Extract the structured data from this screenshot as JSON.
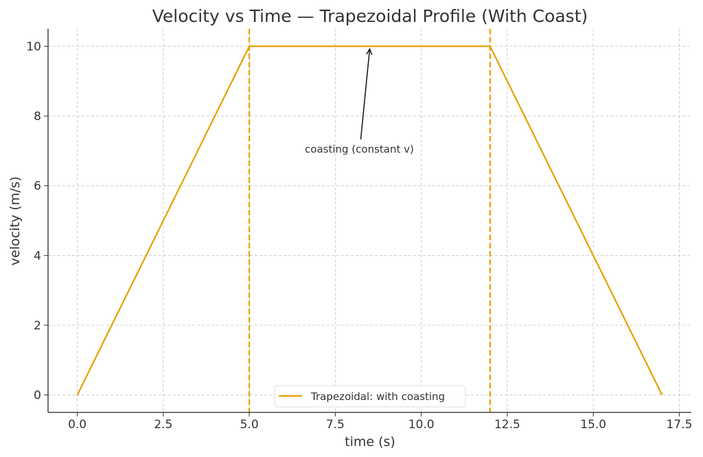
{
  "chart_data": {
    "type": "line",
    "title": "Velocity vs Time — Trapezoidal Profile (With Coast)",
    "xlabel": "time (s)",
    "ylabel": "velocity (m/s)",
    "xlim": [
      -0.85,
      17.85
    ],
    "ylim": [
      -0.5,
      10.5
    ],
    "xticks": [
      0.0,
      2.5,
      5.0,
      7.5,
      10.0,
      12.5,
      15.0,
      17.5
    ],
    "xtick_labels": [
      "0.0",
      "2.5",
      "5.0",
      "7.5",
      "10.0",
      "12.5",
      "15.0",
      "17.5"
    ],
    "yticks": [
      0,
      2,
      4,
      6,
      8,
      10
    ],
    "ytick_labels": [
      "0",
      "2",
      "4",
      "6",
      "8",
      "10"
    ],
    "grid": true,
    "series": [
      {
        "name": "Trapezoidal: with coasting",
        "color": "#E69F00",
        "x": [
          0,
          5,
          12,
          17
        ],
        "y": [
          0,
          10,
          10,
          0
        ]
      }
    ],
    "vlines": [
      {
        "x": 5,
        "color": "#E69F00",
        "style": "dashed"
      },
      {
        "x": 12,
        "color": "#E69F00",
        "style": "dashed"
      }
    ],
    "annotations": [
      {
        "text": "coasting (constant v)",
        "xy": [
          8.5,
          10
        ],
        "xytext": [
          8.2,
          7.05
        ]
      }
    ],
    "legend": {
      "placement": "lower-center",
      "entries": [
        "Trapezoidal: with coasting"
      ]
    }
  }
}
